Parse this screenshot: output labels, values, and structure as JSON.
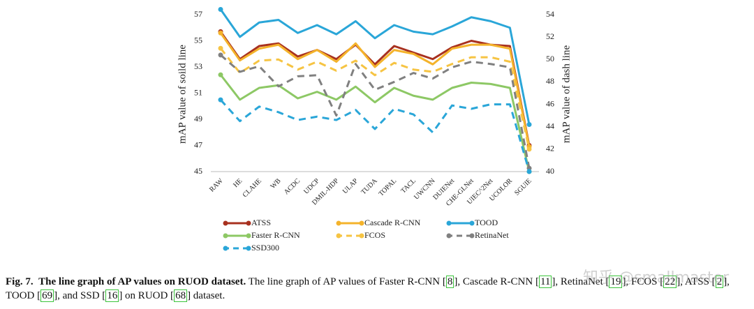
{
  "chart_data": {
    "type": "line",
    "ylabel": "mAP value of soild line",
    "y2label": "mAP value of dash line",
    "categories": [
      "RAW",
      "HE",
      "CLAHE",
      "WB",
      "ACDC",
      "UDCP",
      "DMIL-HDP",
      "ULAP",
      "TUDA",
      "TOPAL",
      "TACL",
      "UWCNN",
      "DUIENet",
      "CHE-GLNet",
      "UIEC^2Net",
      "UCOLOR",
      "SGUIE"
    ],
    "ylim": [
      45,
      57
    ],
    "yticks": [
      45,
      47,
      49,
      51,
      53,
      55,
      57
    ],
    "y2lim": [
      40,
      54
    ],
    "y2ticks": [
      40,
      42,
      44,
      46,
      48,
      50,
      52,
      54
    ],
    "series": [
      {
        "name": "ATSS",
        "color": "#a8311f",
        "axis": "y",
        "dash": false,
        "values": [
          55.7,
          53.6,
          54.6,
          54.8,
          53.8,
          54.3,
          53.6,
          54.7,
          53.2,
          54.6,
          54.1,
          53.6,
          54.5,
          55.0,
          54.7,
          54.6,
          47.0
        ]
      },
      {
        "name": "Cascade R-CNN",
        "color": "#f4b32b",
        "axis": "y",
        "dash": false,
        "values": [
          55.6,
          53.5,
          54.4,
          54.7,
          53.6,
          54.3,
          53.4,
          54.8,
          53.0,
          54.3,
          54.0,
          53.2,
          54.4,
          54.7,
          54.7,
          54.4,
          46.9
        ]
      },
      {
        "name": "TOOD",
        "color": "#2aa6d8",
        "axis": "y",
        "dash": false,
        "values": [
          57.4,
          55.3,
          56.4,
          56.6,
          55.6,
          56.2,
          55.5,
          56.5,
          55.2,
          56.2,
          55.7,
          55.5,
          56.1,
          56.8,
          56.5,
          56.0,
          48.6
        ]
      },
      {
        "name": "Faster R-CNN",
        "color": "#8dc865",
        "axis": "y",
        "dash": false,
        "values": [
          52.4,
          50.5,
          51.4,
          51.6,
          50.6,
          51.1,
          50.5,
          51.5,
          50.3,
          51.4,
          50.8,
          50.5,
          51.4,
          51.8,
          51.7,
          51.4,
          45.0
        ]
      },
      {
        "name": "FCOS",
        "color": "#f6c443",
        "axis": "y2",
        "dash": true,
        "values": [
          51.0,
          48.8,
          49.9,
          50.0,
          49.1,
          49.8,
          49.0,
          49.9,
          48.6,
          49.7,
          49.1,
          48.9,
          49.6,
          50.2,
          50.2,
          49.8,
          42.0
        ]
      },
      {
        "name": "RetinaNet",
        "color": "#808080",
        "axis": "y2",
        "dash": true,
        "values": [
          50.4,
          48.9,
          49.4,
          47.6,
          48.5,
          48.6,
          45.0,
          49.6,
          47.3,
          48.0,
          48.8,
          48.3,
          49.3,
          49.8,
          49.6,
          49.3,
          40.3
        ]
      },
      {
        "name": "SSD300",
        "color": "#2aa6d8",
        "axis": "y2",
        "dash": true,
        "values": [
          46.4,
          44.5,
          45.8,
          45.3,
          44.6,
          44.9,
          44.6,
          45.5,
          43.8,
          45.6,
          45.1,
          43.5,
          45.9,
          45.6,
          46.0,
          46.0,
          40.0
        ]
      }
    ]
  },
  "caption": {
    "label": "Fig. 7.",
    "title": "The line graph of AP values on RUOD dataset.",
    "segments": [
      "The line graph of AP values of Faster R-CNN [",
      "8",
      "], Cascade R-CNN [",
      "11",
      "], RetinaNet [",
      "19",
      "], FCOS [",
      "22",
      "], ATSS [",
      "2",
      "], TOOD [",
      "69",
      "], and SSD [",
      "16",
      "] on RUOD [",
      "68",
      "] dataset."
    ]
  },
  "watermark": "知乎 @smallmaster"
}
